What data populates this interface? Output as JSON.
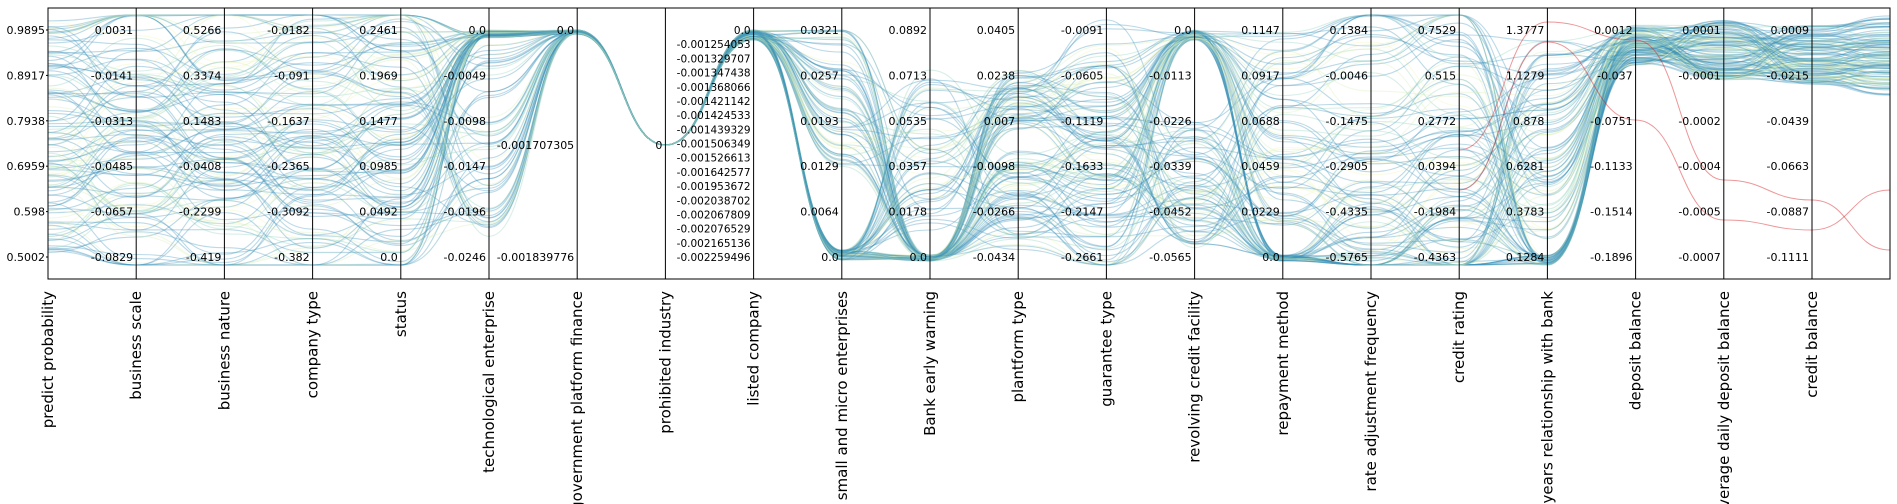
{
  "chart_data": {
    "type": "parallel-coordinates",
    "grid": false,
    "colors": {
      "dominant": "#3b93b9",
      "light": "#8fd0bb",
      "pale": "#d8eeb6",
      "yellow": "#f1f6b5",
      "red": "#d7191c",
      "axis": "#000000"
    },
    "axes": [
      {
        "label": "predict probability",
        "ticks": [
          "0.9895",
          "0.8917",
          "0.7938",
          "0.6959",
          "0.598",
          "0.5002"
        ]
      },
      {
        "label": "business scale",
        "ticks": [
          "0.0031",
          "-0.0141",
          "-0.0313",
          "-0.0485",
          "-0.0657",
          "-0.0829"
        ]
      },
      {
        "label": "business nature",
        "ticks": [
          "0.5266",
          "0.3374",
          "0.1483",
          "-0.0408",
          "-0.2299",
          "-0.419"
        ]
      },
      {
        "label": "company type",
        "ticks": [
          "-0.0182",
          "-0.091",
          "-0.1637",
          "-0.2365",
          "-0.3092",
          "-0.382"
        ]
      },
      {
        "label": "status",
        "ticks": [
          "0.2461",
          "0.1969",
          "0.1477",
          "0.0985",
          "0.0492",
          "0.0"
        ]
      },
      {
        "label": "technological enterprise",
        "ticks": [
          "0.0",
          "-0.0049",
          "-0.0098",
          "-0.0147",
          "-0.0196",
          "-0.0246"
        ]
      },
      {
        "label": "government platform finance",
        "ticks": [
          "0.0",
          "-0.001707305",
          "-0.001839776"
        ]
      },
      {
        "label": "prohibited industry",
        "ticks": [
          "0"
        ]
      },
      {
        "label": "listed company",
        "ticks": [
          "0.0",
          "-0.001254053",
          "-0.001329707",
          "-0.001347438",
          "-0.001368066",
          "-0.001421142",
          "-0.001424533",
          "-0.001439329",
          "-0.001506349",
          "-0.001526613",
          "-0.001642577",
          "-0.001953672",
          "-0.002038702",
          "-0.002067809",
          "-0.002076529",
          "-0.002165136",
          "-0.002259496"
        ]
      },
      {
        "label": "small and micro enterprises",
        "ticks": [
          "0.0321",
          "0.0257",
          "0.0193",
          "0.0129",
          "0.0064",
          "0.0"
        ]
      },
      {
        "label": "Bank early warning",
        "ticks": [
          "0.0892",
          "0.0713",
          "0.0535",
          "0.0357",
          "0.0178",
          "0.0"
        ]
      },
      {
        "label": "plantform type",
        "ticks": [
          "0.0405",
          "0.0238",
          "0.007",
          "-0.0098",
          "-0.0266",
          "-0.0434"
        ]
      },
      {
        "label": "guarantee type",
        "ticks": [
          "-0.0091",
          "-0.0605",
          "-0.1119",
          "-0.1633",
          "-0.2147",
          "-0.2661"
        ]
      },
      {
        "label": "revolving credit facility",
        "ticks": [
          "0.0",
          "-0.0113",
          "-0.0226",
          "-0.0339",
          "-0.0452",
          "-0.0565"
        ]
      },
      {
        "label": "repayment method",
        "ticks": [
          "0.1147",
          "0.0917",
          "0.0688",
          "0.0459",
          "0.0229",
          "0.0"
        ]
      },
      {
        "label": "rate adjustment frequency",
        "ticks": [
          "0.1384",
          "-0.0046",
          "-0.1475",
          "-0.2905",
          "-0.4335",
          "-0.5765"
        ]
      },
      {
        "label": "credit rating",
        "ticks": [
          "0.7529",
          "0.515",
          "0.2772",
          "0.0394",
          "-0.1984",
          "-0.4363"
        ]
      },
      {
        "label": "years relationship with bank",
        "ticks": [
          "1.3777",
          "1.1279",
          "0.878",
          "0.6281",
          "0.3783",
          "0.1284"
        ]
      },
      {
        "label": "deposit balance",
        "ticks": [
          "0.0012",
          "-0.037",
          "-0.0751",
          "-0.1133",
          "-0.1514",
          "-0.1896"
        ]
      },
      {
        "label": "average daily deposit balance",
        "ticks": [
          "0.0001",
          "-0.0001",
          "-0.0002",
          "-0.0004",
          "-0.0005",
          "-0.0007"
        ]
      },
      {
        "label": "credit balance",
        "ticks": [
          "0.0009",
          "-0.0215",
          "-0.0439",
          "-0.0663",
          "-0.0887",
          "-0.1111"
        ]
      }
    ]
  }
}
